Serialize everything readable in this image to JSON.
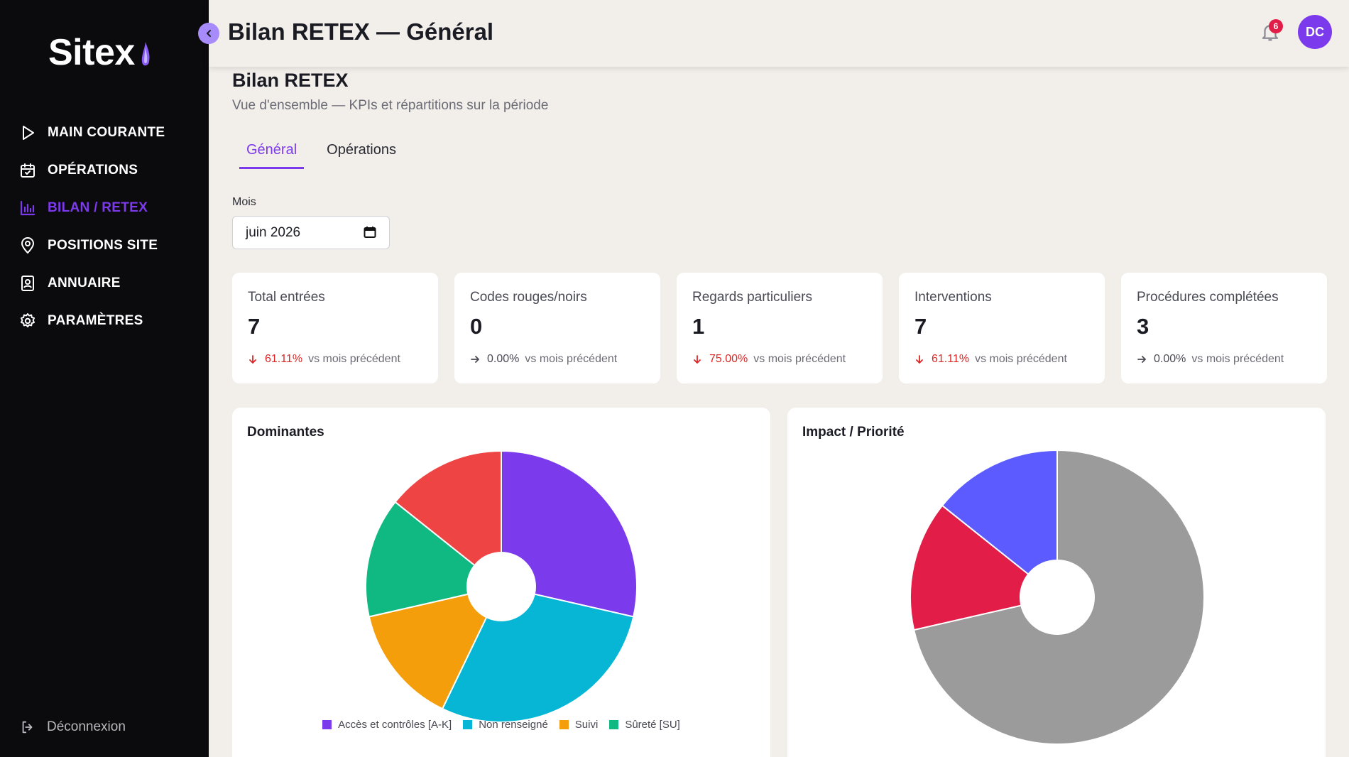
{
  "app": {
    "logo": "Sitex",
    "notification_count": "6",
    "avatar_initials": "DC"
  },
  "sidebar": {
    "items": [
      {
        "label": "MAIN COURANTE",
        "icon": "play-icon",
        "active": false
      },
      {
        "label": "OPÉRATIONS",
        "icon": "calendar-check-icon",
        "active": false
      },
      {
        "label": "BILAN / RETEX",
        "icon": "bar-chart-icon",
        "active": true
      },
      {
        "label": "POSITIONS SITE",
        "icon": "map-pin-icon",
        "active": false
      },
      {
        "label": "ANNUAIRE",
        "icon": "contact-card-icon",
        "active": false
      },
      {
        "label": "PARAMÈTRES",
        "icon": "gear-icon",
        "active": false
      }
    ],
    "logout_label": "Déconnexion"
  },
  "header": {
    "title": "Bilan RETEX — Général"
  },
  "main": {
    "title": "Bilan RETEX",
    "subtitle": "Vue d'ensemble — KPIs et répartitions sur la période",
    "tabs": [
      {
        "label": "Général",
        "active": true
      },
      {
        "label": "Opérations",
        "active": false
      }
    ],
    "month_label": "Mois",
    "month_value": "juin 2026"
  },
  "kpis": [
    {
      "label": "Total entrées",
      "value": "7",
      "trend": "down",
      "pct": "61.11%",
      "suffix": "vs mois précédent"
    },
    {
      "label": "Codes rouges/noirs",
      "value": "0",
      "trend": "flat",
      "pct": "0.00%",
      "suffix": "vs mois précédent"
    },
    {
      "label": "Regards particuliers",
      "value": "1",
      "trend": "down",
      "pct": "75.00%",
      "suffix": "vs mois précédent"
    },
    {
      "label": "Interventions",
      "value": "7",
      "trend": "down",
      "pct": "61.11%",
      "suffix": "vs mois précédent"
    },
    {
      "label": "Procédures complétées",
      "value": "3",
      "trend": "flat",
      "pct": "0.00%",
      "suffix": "vs mois précédent"
    }
  ],
  "colors": {
    "accent": "#7c3aed",
    "down": "#dc2626"
  },
  "chart_data": [
    {
      "type": "pie",
      "title": "Dominantes",
      "legend": "bottom",
      "series": [
        {
          "name": "Accès et contrôles [A-K]",
          "value": 2,
          "color": "#7c3aed"
        },
        {
          "name": "Non renseigné",
          "value": 2,
          "color": "#06b6d4"
        },
        {
          "name": "Suivi",
          "value": 1,
          "color": "#f59e0b"
        },
        {
          "name": "Sûreté [SU]",
          "value": 1,
          "color": "#10b981"
        },
        {
          "name": "",
          "value": 1,
          "color": "#ef4444"
        }
      ]
    },
    {
      "type": "pie",
      "title": "Impact / Priorité",
      "legend": "none",
      "series": [
        {
          "name": "",
          "value": 5,
          "color": "#9b9b9b"
        },
        {
          "name": "",
          "value": 1,
          "color": "#e11d48"
        },
        {
          "name": "",
          "value": 1,
          "color": "#5b5bff"
        }
      ]
    }
  ]
}
